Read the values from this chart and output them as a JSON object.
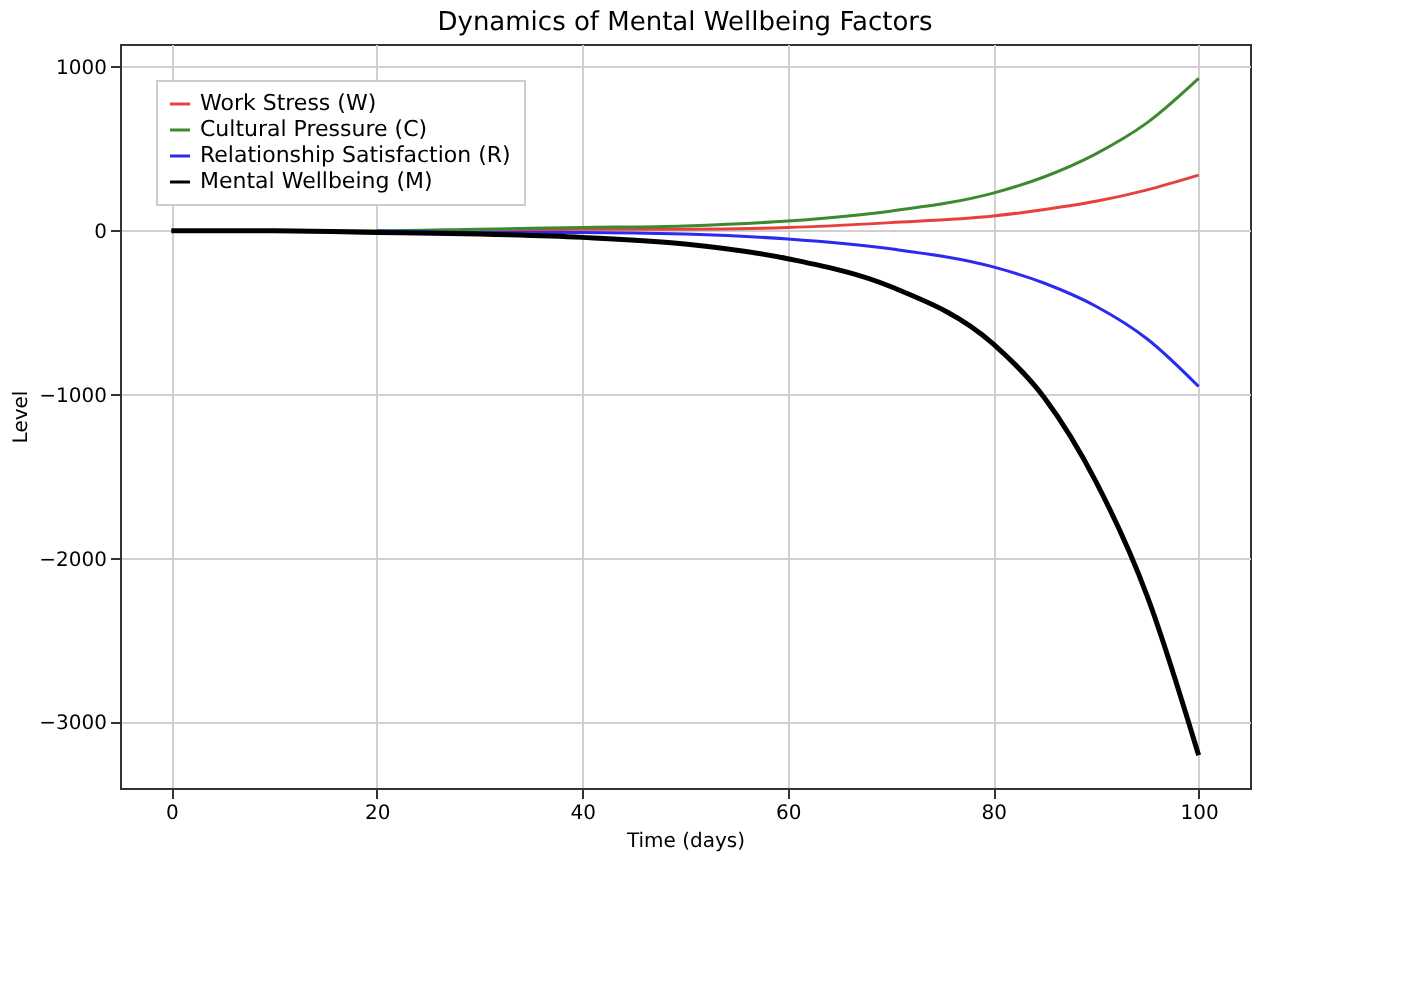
{
  "chart_data": {
    "type": "line",
    "title": "Dynamics of Mental Wellbeing Factors",
    "xlabel": "Time (days)",
    "ylabel": "Level",
    "x": [
      0,
      10,
      20,
      30,
      40,
      50,
      60,
      70,
      80,
      85,
      90,
      95,
      100
    ],
    "series": [
      {
        "name": "Work Stress (W)",
        "color": "#e8403e",
        "values": [
          null,
          null,
          null,
          0,
          10,
          10,
          20,
          50,
          90,
          130,
          180,
          250,
          340
        ]
      },
      {
        "name": "Cultural Pressure (C)",
        "color": "#3c8a2e",
        "values": [
          0,
          0,
          0,
          10,
          20,
          30,
          60,
          120,
          230,
          330,
          470,
          660,
          930
        ]
      },
      {
        "name": "Relationship Satisfaction (R)",
        "color": "#2a2af0",
        "values": [
          null,
          null,
          0,
          -10,
          -10,
          -20,
          -50,
          -110,
          -220,
          -320,
          -460,
          -660,
          -950
        ]
      },
      {
        "name": "Mental Wellbeing (M)",
        "color": "#000000",
        "values": [
          0,
          0,
          -10,
          -20,
          -40,
          -80,
          -170,
          -340,
          -690,
          -1020,
          -1530,
          -2230,
          -3200
        ]
      }
    ],
    "xlim": [
      -5,
      105
    ],
    "xticks": [
      0,
      20,
      40,
      60,
      80,
      100
    ],
    "ylim": [
      -3400,
      1140
    ],
    "yticks": [
      {
        "value": -3000,
        "label": "−3000"
      },
      {
        "value": -2000,
        "label": "−2000"
      },
      {
        "value": -1000,
        "label": "−1000"
      },
      0,
      1000
    ],
    "grid": true,
    "legend": "top left",
    "marker": "none",
    "line_style": "solid"
  }
}
